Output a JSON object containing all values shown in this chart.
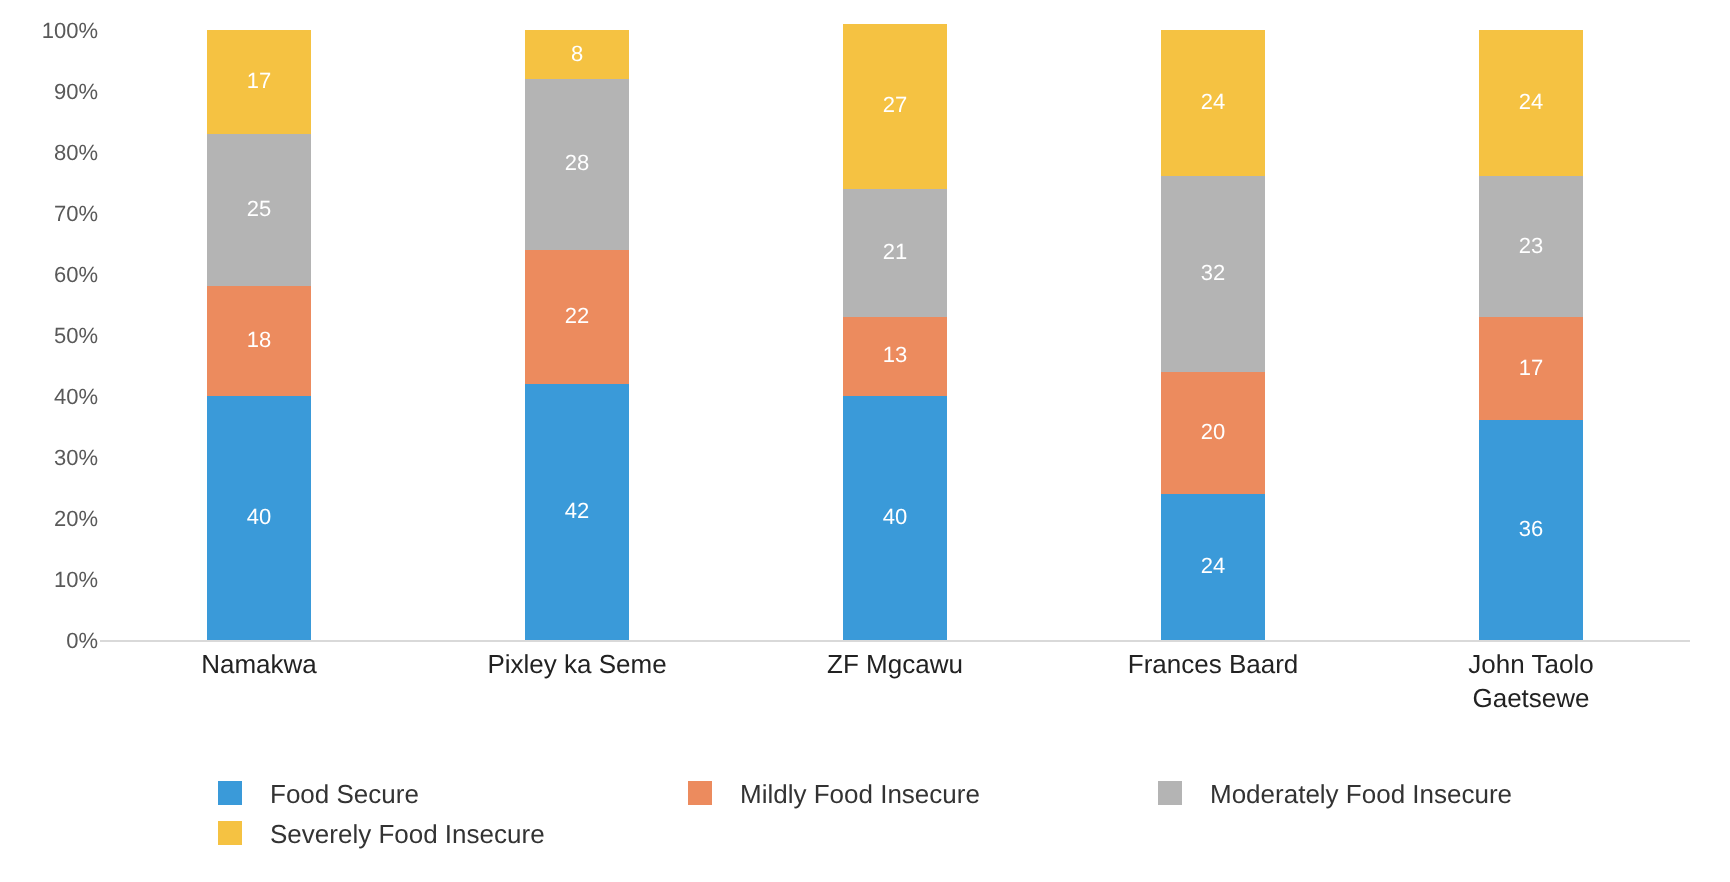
{
  "chart_data": {
    "type": "bar",
    "stacked": true,
    "data_labels": true,
    "legend": "bottom",
    "grid": false,
    "categories": [
      "Namakwa",
      "Pixley ka Seme",
      "ZF Mgcawu",
      "Frances Baard",
      "John Taolo Gaetsewe"
    ],
    "series": [
      {
        "name": "Food Secure",
        "color": "#3a9ad9",
        "values": [
          40,
          42,
          40,
          24,
          36
        ]
      },
      {
        "name": "Mildly Food Insecure",
        "color": "#ec8b5e",
        "values": [
          18,
          22,
          13,
          20,
          17
        ]
      },
      {
        "name": "Moderately Food Insecure",
        "color": "#b4b4b4",
        "values": [
          25,
          28,
          21,
          32,
          23
        ]
      },
      {
        "name": "Severely Food Insecure",
        "color": "#f5c242",
        "values": [
          17,
          8,
          27,
          24,
          24
        ]
      }
    ],
    "ylim": [
      0,
      101
    ],
    "yticks": [
      {
        "value": 0,
        "label": "0%"
      },
      {
        "value": 10,
        "label": "10%"
      },
      {
        "value": 20,
        "label": "20%"
      },
      {
        "value": 30,
        "label": "30%"
      },
      {
        "value": 40,
        "label": "40%"
      },
      {
        "value": 50,
        "label": "50%"
      },
      {
        "value": 60,
        "label": "60%"
      },
      {
        "value": 70,
        "label": "70%"
      },
      {
        "value": 80,
        "label": "80%"
      },
      {
        "value": 90,
        "label": "90%"
      },
      {
        "value": 100,
        "label": "100%"
      }
    ]
  }
}
